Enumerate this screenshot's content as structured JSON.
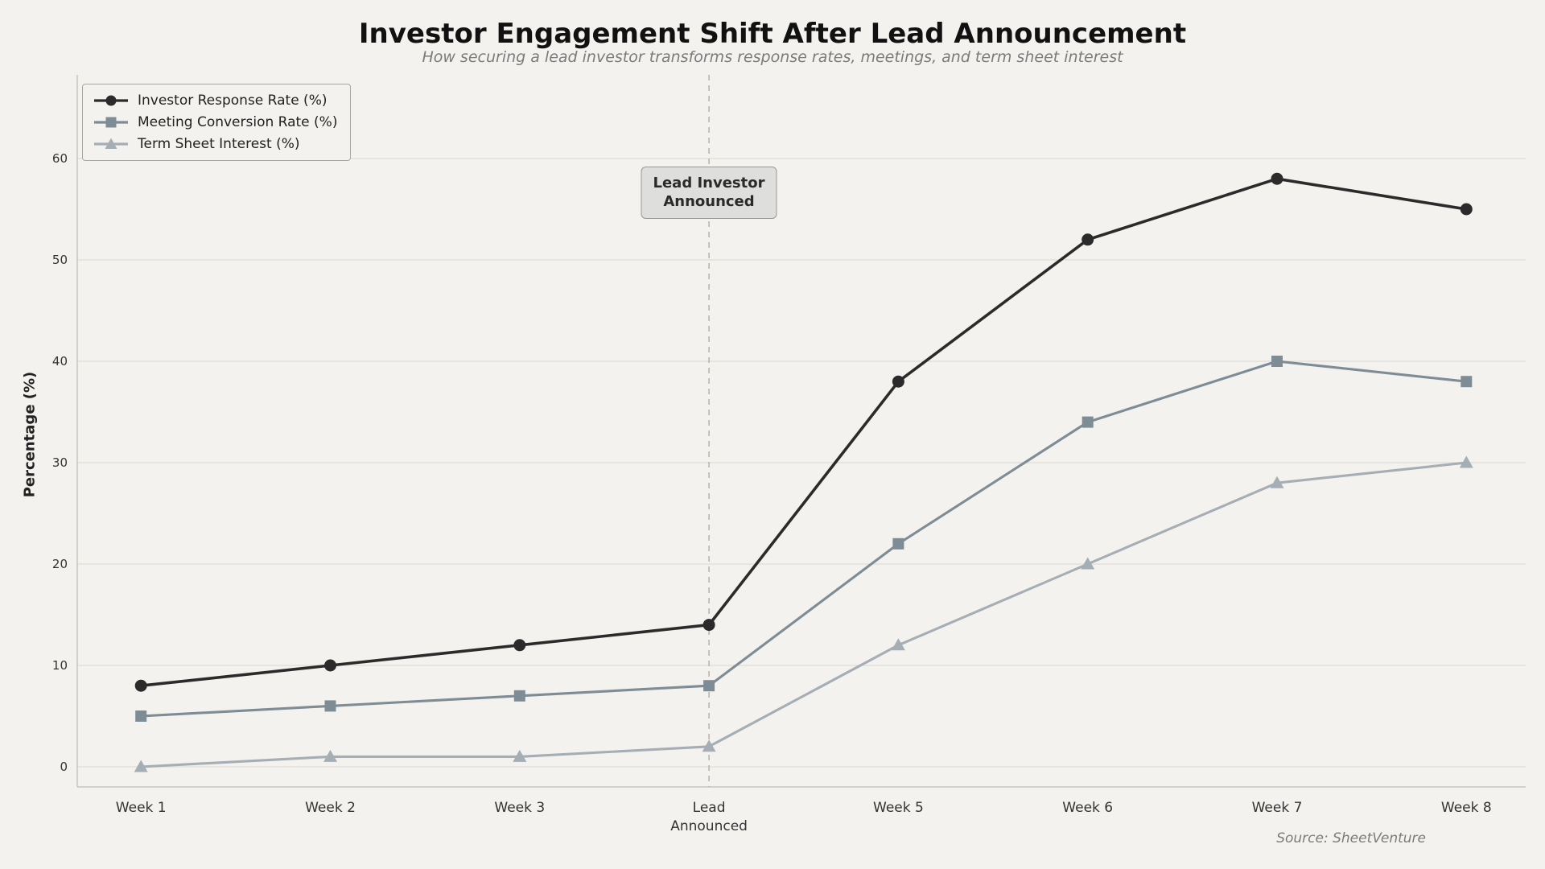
{
  "chart_data": {
    "type": "line",
    "title": "Investor Engagement Shift After Lead Announcement",
    "subtitle": "How securing a lead investor transforms response rates, meetings, and term sheet interest",
    "ylabel": "Percentage (%)",
    "xlabel": "",
    "categories": [
      "Week 1",
      "Week 2",
      "Week 3",
      "Lead\nAnnounced",
      "Week 5",
      "Week 6",
      "Week 7",
      "Week 8"
    ],
    "yticks": [
      0,
      10,
      20,
      30,
      40,
      50,
      60
    ],
    "ylim": [
      -3,
      66
    ],
    "grid": true,
    "legend_position": "top-left",
    "series": [
      {
        "name": "Investor Response Rate (%)",
        "marker": "circle",
        "color": "#2b2b2b",
        "values": [
          8,
          10,
          12,
          14,
          38,
          52,
          58,
          55
        ]
      },
      {
        "name": "Meeting Conversion Rate (%)",
        "marker": "square",
        "color": "#7e8c96",
        "values": [
          5,
          6,
          7,
          8,
          22,
          34,
          40,
          38
        ]
      },
      {
        "name": "Term Sheet Interest (%)",
        "marker": "triangle",
        "color": "#a4aeb4",
        "values": [
          0,
          1,
          1,
          2,
          12,
          20,
          28,
          30
        ]
      }
    ],
    "annotation": {
      "text": "Lead Investor\nAnnounced",
      "x_category_index": 3
    },
    "source": "Source: SheetVenture",
    "colors": {
      "background": "#f4f2ee",
      "gridline": "#e3e0da",
      "vline": "#b9b6b1",
      "spine": "#c8c5bf"
    }
  }
}
